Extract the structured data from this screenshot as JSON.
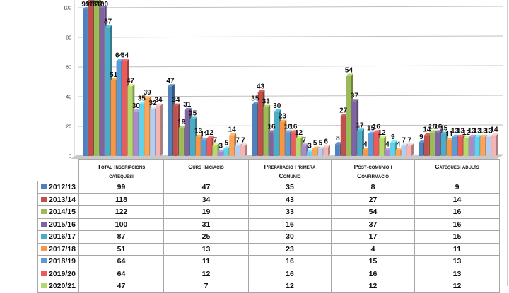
{
  "chart_data": {
    "type": "bar",
    "title": "",
    "xlabel": "",
    "ylabel": "",
    "ylim": [
      0,
      100
    ],
    "yticks": [
      0,
      20,
      40,
      60,
      80,
      100
    ],
    "grid": true,
    "legend_placement": "data-table-below",
    "categories": [
      "Total Inscripcions catequesi",
      "Curs Iniciació",
      "Preparació Primera Comunió",
      "Post-comunió i Confirmació",
      "Catequesi adults"
    ],
    "series": [
      {
        "name": "2012/13",
        "color": "#4f81bd",
        "values": [
          99,
          47,
          35,
          8,
          9
        ],
        "in_table": true
      },
      {
        "name": "2013/14",
        "color": "#c0504d",
        "values": [
          118,
          34,
          43,
          27,
          14
        ],
        "in_table": true
      },
      {
        "name": "2014/15",
        "color": "#9bbb59",
        "values": [
          122,
          19,
          33,
          54,
          16
        ],
        "in_table": true
      },
      {
        "name": "2015/16",
        "color": "#8064a2",
        "values": [
          100,
          31,
          16,
          37,
          16
        ],
        "in_table": true
      },
      {
        "name": "2016/17",
        "color": "#4bacc6",
        "values": [
          87,
          25,
          30,
          17,
          15
        ],
        "in_table": true
      },
      {
        "name": "2017/18",
        "color": "#f79646",
        "values": [
          51,
          13,
          23,
          4,
          11
        ],
        "in_table": true
      },
      {
        "name": "2018/19",
        "color": "#5b9bd5",
        "values": [
          64,
          11,
          16,
          15,
          13
        ],
        "in_table": true
      },
      {
        "name": "2019/20",
        "color": "#e85c5c",
        "values": [
          64,
          12,
          16,
          16,
          13
        ],
        "in_table": true
      },
      {
        "name": "2020/21",
        "color": "#b5d96a",
        "values": [
          47,
          7,
          12,
          12,
          12
        ],
        "in_table": true
      },
      {
        "name": "",
        "color": "#a98bcb",
        "values": [
          30,
          3,
          7,
          4,
          13
        ],
        "in_table": false
      },
      {
        "name": "",
        "color": "#5fd3ea",
        "values": [
          35,
          5,
          3,
          9,
          13
        ],
        "in_table": false
      },
      {
        "name": "",
        "color": "#fca55a",
        "values": [
          39,
          14,
          5,
          4,
          13
        ],
        "in_table": false
      },
      {
        "name": "",
        "color": "#b4cdf0",
        "values": [
          32,
          7,
          5,
          7,
          13
        ],
        "in_table": false
      },
      {
        "name": "",
        "color": "#f5b5b5",
        "values": [
          34,
          7,
          6,
          7,
          14
        ],
        "in_table": false
      }
    ]
  },
  "table": {
    "headers": [
      [
        "Total Inscripcions",
        "catequesi"
      ],
      [
        "Curs Iniciació",
        ""
      ],
      [
        "Preparació Primera",
        "Comunió"
      ],
      [
        "Post-comunió i",
        "Confirmació"
      ],
      [
        "Catequesi adults",
        ""
      ]
    ]
  }
}
